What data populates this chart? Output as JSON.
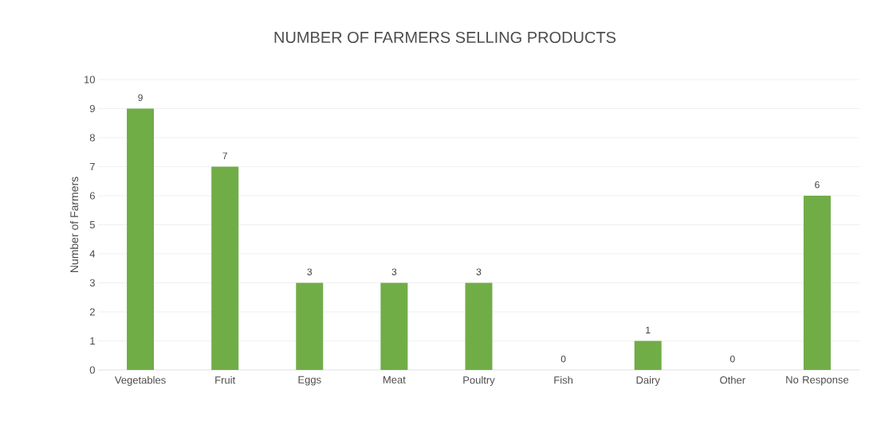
{
  "chart_data": {
    "type": "bar",
    "title": "NUMBER OF FARMERS SELLING PRODUCTS",
    "ylabel": "Number of Farmers",
    "categories": [
      "Vegetables",
      "Fruit",
      "Eggs",
      "Meat",
      "Poultry",
      "Fish",
      "Dairy",
      "Other",
      "No Response"
    ],
    "values": [
      9,
      7,
      3,
      3,
      3,
      0,
      1,
      0,
      6
    ],
    "color": "#70ad47",
    "ylim": [
      0,
      10
    ],
    "yticks": [
      0,
      1,
      2,
      3,
      4,
      5,
      6,
      7,
      8,
      9,
      10
    ],
    "grid": "y",
    "data_labels": true
  }
}
